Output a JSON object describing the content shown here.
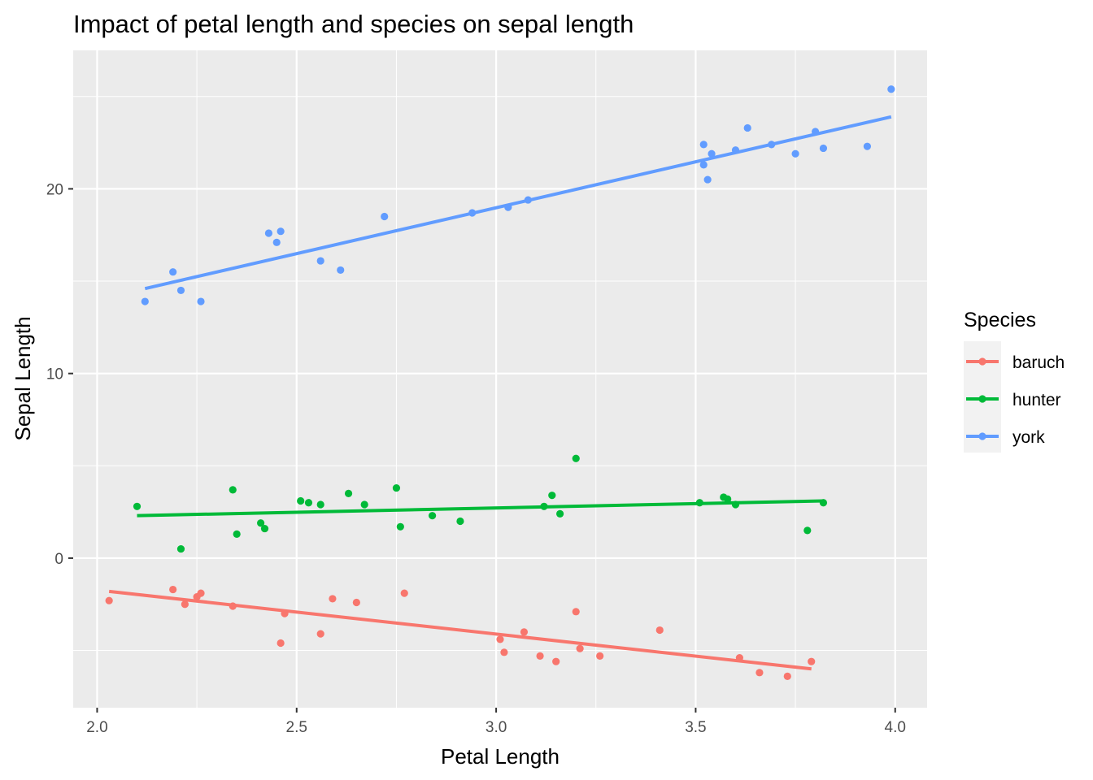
{
  "chart_data": {
    "type": "scatter",
    "title": "Impact of petal length and species on sepal length",
    "xlabel": "Petal Length",
    "ylabel": "Sepal Length",
    "xlim": [
      1.94,
      4.08
    ],
    "ylim": [
      -8.1,
      27.5
    ],
    "x_ticks": [
      2.0,
      2.5,
      3.0,
      3.5,
      4.0
    ],
    "x_tick_labels": [
      "2.0",
      "2.5",
      "3.0",
      "3.5",
      "4.0"
    ],
    "y_ticks": [
      0,
      10,
      20
    ],
    "y_tick_labels": [
      "0",
      "10",
      "20"
    ],
    "grid": true,
    "legend": {
      "title": "Species",
      "position": "right"
    },
    "series": [
      {
        "name": "baruch",
        "color": "#F8766D",
        "points": [
          [
            2.03,
            -2.3
          ],
          [
            2.19,
            -1.7
          ],
          [
            2.22,
            -2.5
          ],
          [
            2.25,
            -2.1
          ],
          [
            2.26,
            -1.9
          ],
          [
            2.34,
            -2.6
          ],
          [
            2.46,
            -4.6
          ],
          [
            2.47,
            -3.0
          ],
          [
            2.56,
            -4.1
          ],
          [
            2.59,
            -2.2
          ],
          [
            2.65,
            -2.4
          ],
          [
            2.77,
            -1.9
          ],
          [
            3.01,
            -4.4
          ],
          [
            3.02,
            -5.1
          ],
          [
            3.07,
            -4.0
          ],
          [
            3.11,
            -5.3
          ],
          [
            3.15,
            -5.6
          ],
          [
            3.2,
            -2.9
          ],
          [
            3.21,
            -4.9
          ],
          [
            3.26,
            -5.3
          ],
          [
            3.41,
            -3.9
          ],
          [
            3.61,
            -5.4
          ],
          [
            3.66,
            -6.2
          ],
          [
            3.73,
            -6.4
          ],
          [
            3.79,
            -5.6
          ]
        ],
        "fit": [
          [
            2.03,
            -1.8
          ],
          [
            3.79,
            -6.0
          ]
        ]
      },
      {
        "name": "hunter",
        "color": "#00BA38",
        "points": [
          [
            2.1,
            2.8
          ],
          [
            2.21,
            0.5
          ],
          [
            2.34,
            3.7
          ],
          [
            2.35,
            1.3
          ],
          [
            2.41,
            1.9
          ],
          [
            2.42,
            1.6
          ],
          [
            2.51,
            3.1
          ],
          [
            2.53,
            3.0
          ],
          [
            2.56,
            2.9
          ],
          [
            2.63,
            3.5
          ],
          [
            2.67,
            2.9
          ],
          [
            2.75,
            3.8
          ],
          [
            2.76,
            1.7
          ],
          [
            2.84,
            2.3
          ],
          [
            2.91,
            2.0
          ],
          [
            3.12,
            2.8
          ],
          [
            3.14,
            3.4
          ],
          [
            3.16,
            2.4
          ],
          [
            3.2,
            5.4
          ],
          [
            3.51,
            3.0
          ],
          [
            3.57,
            3.3
          ],
          [
            3.58,
            3.2
          ],
          [
            3.6,
            2.9
          ],
          [
            3.78,
            1.5
          ],
          [
            3.82,
            3.0
          ]
        ],
        "fit": [
          [
            2.1,
            2.3
          ],
          [
            3.82,
            3.1
          ]
        ]
      },
      {
        "name": "york",
        "color": "#619CFF",
        "points": [
          [
            2.12,
            13.9
          ],
          [
            2.19,
            15.5
          ],
          [
            2.21,
            14.5
          ],
          [
            2.26,
            13.9
          ],
          [
            2.43,
            17.6
          ],
          [
            2.45,
            17.1
          ],
          [
            2.46,
            17.7
          ],
          [
            2.56,
            16.1
          ],
          [
            2.61,
            15.6
          ],
          [
            2.72,
            18.5
          ],
          [
            2.94,
            18.7
          ],
          [
            3.03,
            19.0
          ],
          [
            3.08,
            19.4
          ],
          [
            3.52,
            22.4
          ],
          [
            3.52,
            21.3
          ],
          [
            3.53,
            20.5
          ],
          [
            3.54,
            21.9
          ],
          [
            3.6,
            22.1
          ],
          [
            3.63,
            23.3
          ],
          [
            3.69,
            22.4
          ],
          [
            3.75,
            21.9
          ],
          [
            3.8,
            23.1
          ],
          [
            3.82,
            22.2
          ],
          [
            3.93,
            22.3
          ],
          [
            3.99,
            25.4
          ]
        ],
        "fit": [
          [
            2.12,
            14.6
          ],
          [
            3.99,
            23.9
          ]
        ]
      }
    ]
  }
}
